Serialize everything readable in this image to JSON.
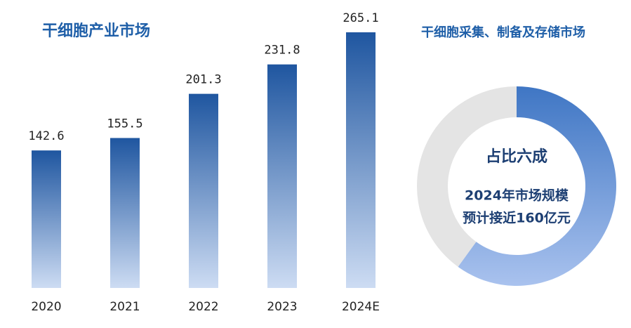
{
  "chart_data": [
    {
      "type": "bar",
      "title": "干细胞产业市场",
      "categories": [
        "2020",
        "2021",
        "2022",
        "2023",
        "2024E"
      ],
      "values": [
        142.6,
        155.5,
        201.3,
        231.8,
        265.1
      ],
      "color": "#1f56a0"
    },
    {
      "type": "donut",
      "title": "干细胞采集、制备及存储市场",
      "values": [
        60,
        40
      ],
      "colors": [
        "#3f76c4",
        "#e4e4e4"
      ],
      "center_text": [
        "占比六成",
        "2024年市场规模",
        "预计接近160亿元"
      ]
    }
  ]
}
